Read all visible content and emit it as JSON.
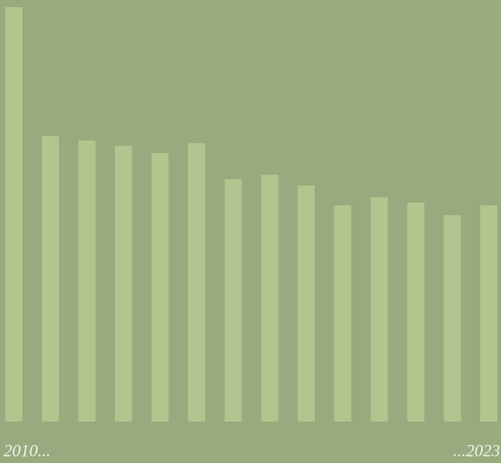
{
  "chart_data": {
    "type": "bar",
    "categories": [
      "2010...",
      null,
      null,
      null,
      null,
      null,
      null,
      null,
      null,
      null,
      null,
      null,
      null,
      "...2023"
    ],
    "values": [
      460,
      317,
      312,
      306,
      298,
      309,
      269,
      274,
      262,
      240,
      249,
      243,
      229,
      240
    ],
    "color": "#b0c68e",
    "background": "#98ab7e",
    "ylim": [
      0,
      460
    ]
  }
}
